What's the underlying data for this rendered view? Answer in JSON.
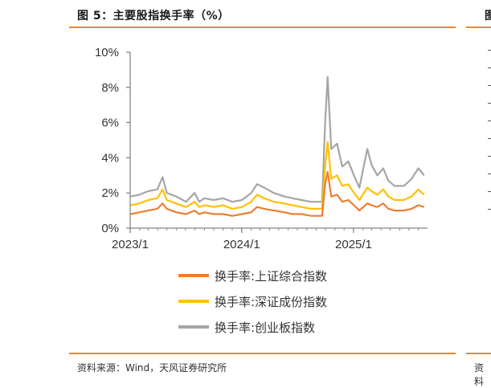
{
  "figure": {
    "title": "图 5：主要股指换手率（%）",
    "source": "资料来源：Wind，天风证券研究所",
    "next_title": "图",
    "next_source": "资料"
  },
  "colors": {
    "accent_rule": "#E8882A",
    "series_sh": "#ED7D31",
    "series_sz": "#FFC000",
    "series_cy": "#A5A5A5"
  },
  "chart_data": {
    "type": "line",
    "title": "",
    "xlabel": "",
    "ylabel": "",
    "x_ticks": [
      "2023/1",
      "2024/1",
      "2025/1"
    ],
    "x_range": [
      "2023-01-01",
      "2025-08-31"
    ],
    "y_ticks": [
      "0%",
      "2%",
      "4%",
      "6%",
      "8%",
      "10%"
    ],
    "ylim": [
      0,
      10
    ],
    "grid": false,
    "legend_position": "bottom",
    "series": [
      {
        "name": "换手率:上证综合指数",
        "color": "#ED7D31",
        "points": [
          [
            "2023-01-03",
            0.8
          ],
          [
            "2023-01-31",
            0.9
          ],
          [
            "2023-03-01",
            1.0
          ],
          [
            "2023-03-31",
            1.1
          ],
          [
            "2023-04-17",
            1.4
          ],
          [
            "2023-05-01",
            1.1
          ],
          [
            "2023-06-01",
            0.9
          ],
          [
            "2023-07-03",
            0.8
          ],
          [
            "2023-07-31",
            1.0
          ],
          [
            "2023-08-15",
            0.8
          ],
          [
            "2023-09-01",
            0.9
          ],
          [
            "2023-10-01",
            0.8
          ],
          [
            "2023-11-01",
            0.8
          ],
          [
            "2023-12-01",
            0.7
          ],
          [
            "2024-01-02",
            0.8
          ],
          [
            "2024-02-01",
            0.9
          ],
          [
            "2024-02-20",
            1.2
          ],
          [
            "2024-03-15",
            1.1
          ],
          [
            "2024-04-15",
            1.0
          ],
          [
            "2024-05-20",
            0.9
          ],
          [
            "2024-06-15",
            0.8
          ],
          [
            "2024-07-15",
            0.8
          ],
          [
            "2024-08-15",
            0.7
          ],
          [
            "2024-09-20",
            0.7
          ],
          [
            "2024-09-30",
            2.5
          ],
          [
            "2024-10-08",
            3.2
          ],
          [
            "2024-10-20",
            1.8
          ],
          [
            "2024-11-08",
            1.9
          ],
          [
            "2024-11-25",
            1.5
          ],
          [
            "2024-12-15",
            1.6
          ],
          [
            "2025-01-02",
            1.3
          ],
          [
            "2025-01-20",
            1.0
          ],
          [
            "2025-02-15",
            1.4
          ],
          [
            "2025-03-01",
            1.3
          ],
          [
            "2025-03-20",
            1.2
          ],
          [
            "2025-04-08",
            1.4
          ],
          [
            "2025-04-25",
            1.1
          ],
          [
            "2025-05-15",
            1.0
          ],
          [
            "2025-06-15",
            1.0
          ],
          [
            "2025-07-10",
            1.1
          ],
          [
            "2025-08-01",
            1.3
          ],
          [
            "2025-08-20",
            1.2
          ]
        ]
      },
      {
        "name": "换手率:深证成份指数",
        "color": "#FFC000",
        "points": [
          [
            "2023-01-03",
            1.3
          ],
          [
            "2023-01-31",
            1.4
          ],
          [
            "2023-03-01",
            1.6
          ],
          [
            "2023-03-31",
            1.7
          ],
          [
            "2023-04-17",
            2.2
          ],
          [
            "2023-05-01",
            1.6
          ],
          [
            "2023-06-01",
            1.4
          ],
          [
            "2023-07-03",
            1.2
          ],
          [
            "2023-07-31",
            1.5
          ],
          [
            "2023-08-15",
            1.2
          ],
          [
            "2023-09-01",
            1.3
          ],
          [
            "2023-10-01",
            1.2
          ],
          [
            "2023-11-01",
            1.3
          ],
          [
            "2023-12-01",
            1.1
          ],
          [
            "2024-01-02",
            1.2
          ],
          [
            "2024-02-01",
            1.5
          ],
          [
            "2024-02-20",
            1.9
          ],
          [
            "2024-03-15",
            1.7
          ],
          [
            "2024-04-15",
            1.5
          ],
          [
            "2024-05-20",
            1.4
          ],
          [
            "2024-06-15",
            1.3
          ],
          [
            "2024-07-15",
            1.2
          ],
          [
            "2024-08-15",
            1.1
          ],
          [
            "2024-09-20",
            1.1
          ],
          [
            "2024-09-30",
            3.5
          ],
          [
            "2024-10-08",
            4.9
          ],
          [
            "2024-10-20",
            2.8
          ],
          [
            "2024-11-08",
            3.0
          ],
          [
            "2024-11-25",
            2.4
          ],
          [
            "2024-12-15",
            2.5
          ],
          [
            "2025-01-02",
            2.0
          ],
          [
            "2025-01-20",
            1.6
          ],
          [
            "2025-02-15",
            2.3
          ],
          [
            "2025-03-01",
            2.1
          ],
          [
            "2025-03-20",
            1.9
          ],
          [
            "2025-04-08",
            2.2
          ],
          [
            "2025-04-25",
            1.8
          ],
          [
            "2025-05-15",
            1.6
          ],
          [
            "2025-06-15",
            1.6
          ],
          [
            "2025-07-10",
            1.8
          ],
          [
            "2025-08-01",
            2.2
          ],
          [
            "2025-08-20",
            1.9
          ]
        ]
      },
      {
        "name": "换手率:创业板指数",
        "color": "#A5A5A5",
        "points": [
          [
            "2023-01-03",
            1.8
          ],
          [
            "2023-01-31",
            1.9
          ],
          [
            "2023-03-01",
            2.1
          ],
          [
            "2023-03-31",
            2.2
          ],
          [
            "2023-04-17",
            2.9
          ],
          [
            "2023-05-01",
            2.0
          ],
          [
            "2023-06-01",
            1.8
          ],
          [
            "2023-07-03",
            1.5
          ],
          [
            "2023-07-31",
            2.0
          ],
          [
            "2023-08-15",
            1.5
          ],
          [
            "2023-09-01",
            1.7
          ],
          [
            "2023-10-01",
            1.6
          ],
          [
            "2023-11-01",
            1.7
          ],
          [
            "2023-12-01",
            1.5
          ],
          [
            "2024-01-02",
            1.6
          ],
          [
            "2024-02-01",
            2.0
          ],
          [
            "2024-02-20",
            2.5
          ],
          [
            "2024-03-15",
            2.3
          ],
          [
            "2024-04-15",
            2.0
          ],
          [
            "2024-05-20",
            1.8
          ],
          [
            "2024-06-15",
            1.7
          ],
          [
            "2024-07-15",
            1.6
          ],
          [
            "2024-08-15",
            1.5
          ],
          [
            "2024-09-20",
            1.5
          ],
          [
            "2024-09-30",
            6.0
          ],
          [
            "2024-10-08",
            8.6
          ],
          [
            "2024-10-20",
            4.5
          ],
          [
            "2024-11-08",
            4.8
          ],
          [
            "2024-11-25",
            3.5
          ],
          [
            "2024-12-15",
            3.8
          ],
          [
            "2025-01-02",
            3.0
          ],
          [
            "2025-01-20",
            2.3
          ],
          [
            "2025-02-15",
            4.5
          ],
          [
            "2025-03-01",
            3.6
          ],
          [
            "2025-03-20",
            3.0
          ],
          [
            "2025-04-08",
            3.4
          ],
          [
            "2025-04-25",
            2.7
          ],
          [
            "2025-05-15",
            2.4
          ],
          [
            "2025-06-15",
            2.4
          ],
          [
            "2025-07-10",
            2.8
          ],
          [
            "2025-08-01",
            3.4
          ],
          [
            "2025-08-20",
            3.0
          ]
        ]
      }
    ]
  }
}
